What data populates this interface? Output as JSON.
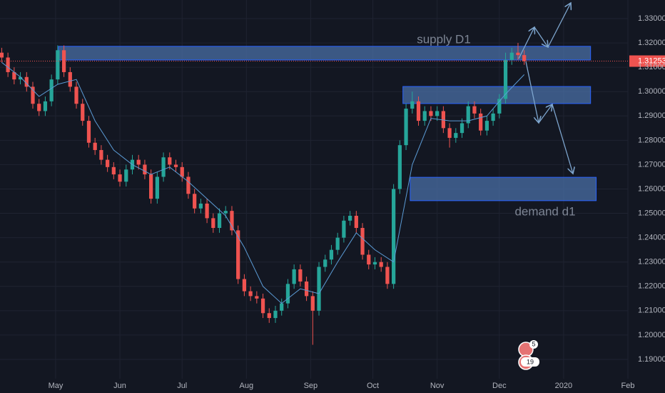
{
  "chart_data": {
    "type": "candlestick",
    "x": [
      -26,
      -23,
      -20,
      -17,
      -14,
      -11,
      -8,
      -5,
      -2,
      1,
      4,
      7,
      10,
      13,
      16,
      19,
      22,
      25,
      28,
      31,
      34,
      37,
      40,
      43,
      46,
      49,
      52,
      55,
      58,
      61,
      64,
      67,
      70,
      73,
      76,
      79,
      82,
      85,
      88,
      91,
      94,
      97,
      100,
      103,
      106,
      109,
      112,
      115,
      118,
      121,
      124,
      127,
      130,
      133,
      136,
      139,
      142,
      145,
      148,
      151,
      154,
      157,
      160,
      163,
      166,
      169,
      172,
      175,
      178,
      181,
      184,
      187,
      190,
      193,
      196,
      199,
      202,
      205,
      208,
      211,
      214,
      217,
      220,
      223,
      226
    ],
    "open": [
      1.316,
      1.314,
      1.308,
      1.305,
      1.306,
      1.302,
      1.295,
      1.292,
      1.296,
      1.305,
      1.317,
      1.308,
      1.302,
      1.295,
      1.288,
      1.279,
      1.276,
      1.272,
      1.269,
      1.266,
      1.263,
      1.268,
      1.272,
      1.27,
      1.266,
      1.256,
      1.265,
      1.273,
      1.27,
      1.269,
      1.265,
      1.258,
      1.252,
      1.254,
      1.248,
      1.244,
      1.25,
      1.251,
      1.243,
      1.223,
      1.218,
      1.216,
      1.215,
      1.209,
      1.207,
      1.21,
      1.213,
      1.221,
      1.227,
      1.222,
      1.216,
      1.21,
      1.228,
      1.231,
      1.235,
      1.24,
      1.247,
      1.249,
      1.244,
      1.233,
      1.229,
      1.23,
      1.228,
      1.221,
      1.26,
      1.278,
      1.293,
      1.296,
      1.288,
      1.292,
      1.29,
      1.292,
      1.285,
      1.281,
      1.283,
      1.287,
      1.294,
      1.291,
      1.284,
      1.288,
      1.291,
      1.297,
      1.313,
      1.316,
      1.315
    ],
    "high": [
      1.318,
      1.316,
      1.31,
      1.308,
      1.308,
      1.304,
      1.297,
      1.298,
      1.307,
      1.319,
      1.319,
      1.31,
      1.304,
      1.297,
      1.29,
      1.281,
      1.278,
      1.274,
      1.271,
      1.268,
      1.27,
      1.274,
      1.274,
      1.272,
      1.268,
      1.267,
      1.275,
      1.275,
      1.272,
      1.271,
      1.267,
      1.26,
      1.256,
      1.256,
      1.25,
      1.252,
      1.253,
      1.253,
      1.245,
      1.225,
      1.22,
      1.218,
      1.217,
      1.211,
      1.212,
      1.215,
      1.223,
      1.229,
      1.229,
      1.224,
      1.218,
      1.23,
      1.233,
      1.237,
      1.242,
      1.249,
      1.251,
      1.251,
      1.246,
      1.235,
      1.232,
      1.232,
      1.23,
      1.262,
      1.28,
      1.295,
      1.3,
      1.298,
      1.294,
      1.294,
      1.294,
      1.294,
      1.287,
      1.285,
      1.289,
      1.296,
      1.296,
      1.293,
      1.29,
      1.293,
      1.299,
      1.316,
      1.318,
      1.32,
      1.317
    ],
    "low": [
      1.312,
      1.306,
      1.303,
      1.303,
      1.3,
      1.293,
      1.29,
      1.29,
      1.294,
      1.303,
      1.306,
      1.3,
      1.293,
      1.286,
      1.277,
      1.274,
      1.27,
      1.267,
      1.264,
      1.261,
      1.261,
      1.266,
      1.268,
      1.264,
      1.254,
      1.254,
      1.263,
      1.268,
      1.267,
      1.263,
      1.256,
      1.25,
      1.25,
      1.246,
      1.242,
      1.242,
      1.248,
      1.241,
      1.221,
      1.216,
      1.214,
      1.213,
      1.207,
      1.205,
      1.205,
      1.208,
      1.211,
      1.219,
      1.22,
      1.214,
      1.196,
      1.208,
      1.226,
      1.229,
      1.233,
      1.238,
      1.245,
      1.242,
      1.231,
      1.227,
      1.227,
      1.226,
      1.219,
      1.219,
      1.258,
      1.276,
      1.291,
      1.286,
      1.286,
      1.288,
      1.288,
      1.283,
      1.277,
      1.279,
      1.281,
      1.285,
      1.289,
      1.282,
      1.282,
      1.286,
      1.289,
      1.295,
      1.311,
      1.313,
      1.311
    ],
    "close": [
      1.314,
      1.308,
      1.305,
      1.306,
      1.302,
      1.295,
      1.292,
      1.296,
      1.305,
      1.317,
      1.308,
      1.302,
      1.295,
      1.288,
      1.279,
      1.276,
      1.272,
      1.269,
      1.266,
      1.263,
      1.268,
      1.272,
      1.27,
      1.266,
      1.256,
      1.265,
      1.273,
      1.27,
      1.269,
      1.265,
      1.258,
      1.252,
      1.254,
      1.248,
      1.244,
      1.25,
      1.251,
      1.243,
      1.223,
      1.218,
      1.216,
      1.215,
      1.209,
      1.207,
      1.21,
      1.213,
      1.221,
      1.227,
      1.222,
      1.216,
      1.21,
      1.228,
      1.231,
      1.235,
      1.24,
      1.247,
      1.249,
      1.244,
      1.233,
      1.229,
      1.23,
      1.228,
      1.221,
      1.26,
      1.278,
      1.293,
      1.296,
      1.288,
      1.292,
      1.29,
      1.292,
      1.285,
      1.281,
      1.283,
      1.287,
      1.294,
      1.291,
      1.284,
      1.288,
      1.291,
      1.297,
      1.313,
      1.316,
      1.315,
      1.31253
    ],
    "up_color": "#26a69a",
    "down_color": "#ef5350",
    "ma": {
      "color": "#5b9bd5",
      "x": [
        -26,
        -17,
        -8,
        1,
        10,
        19,
        28,
        37,
        46,
        55,
        64,
        73,
        82,
        91,
        100,
        109,
        118,
        127,
        136,
        145,
        154,
        163,
        172,
        181,
        190,
        199,
        208,
        217,
        226
      ],
      "values": [
        1.312,
        1.306,
        1.298,
        1.303,
        1.305,
        1.288,
        1.276,
        1.27,
        1.266,
        1.269,
        1.263,
        1.256,
        1.249,
        1.236,
        1.22,
        1.213,
        1.219,
        1.217,
        1.23,
        1.242,
        1.235,
        1.23,
        1.27,
        1.289,
        1.288,
        1.288,
        1.29,
        1.299,
        1.307
      ]
    },
    "zones": [
      {
        "x": [
          1.4,
          258
        ],
        "y": [
          1.3186,
          1.313
        ]
      },
      {
        "x": [
          167.5,
          258
        ],
        "y": [
          1.3021,
          1.2951
        ]
      },
      {
        "x": [
          171,
          260.7
        ],
        "y": [
          1.2648,
          1.2552
        ]
      }
    ],
    "zone_color": "#4a6fa5",
    "annotations": [
      "supply D1",
      "demand d1"
    ],
    "events": [
      "5",
      "19"
    ],
    "last_price": 1.31253,
    "xlim": [
      -26.83,
      276
    ],
    "xticks": [
      {
        "value": 0,
        "label": "May"
      },
      {
        "value": 31,
        "label": "Jun"
      },
      {
        "value": 61,
        "label": "Jul"
      },
      {
        "value": 92,
        "label": "Aug"
      },
      {
        "value": 123,
        "label": "Sep"
      },
      {
        "value": 153,
        "label": "Oct"
      },
      {
        "value": 184,
        "label": "Nov"
      },
      {
        "value": 214,
        "label": "Dec"
      },
      {
        "value": 245,
        "label": "2020"
      },
      {
        "value": 276,
        "label": "Feb"
      }
    ],
    "ylim": [
      1.18207,
      1.33763
    ],
    "yticks": [
      {
        "value": 1.19,
        "label": "1.19000"
      },
      {
        "value": 1.2,
        "label": "1.20000"
      },
      {
        "value": 1.21,
        "label": "1.21000"
      },
      {
        "value": 1.22,
        "label": "1.22000"
      },
      {
        "value": 1.23,
        "label": "1.23000"
      },
      {
        "value": 1.24,
        "label": "1.24000"
      },
      {
        "value": 1.25,
        "label": "1.25000"
      },
      {
        "value": 1.26,
        "label": "1.26000"
      },
      {
        "value": 1.27,
        "label": "1.27000"
      },
      {
        "value": 1.28,
        "label": "1.28000"
      },
      {
        "value": 1.29,
        "label": "1.29000"
      },
      {
        "value": 1.3,
        "label": "1.30000"
      },
      {
        "value": 1.31,
        "label": "1.31000"
      },
      {
        "value": 1.32,
        "label": "1.32000"
      },
      {
        "value": 1.33,
        "label": "1.33000"
      }
    ],
    "grid": true
  }
}
